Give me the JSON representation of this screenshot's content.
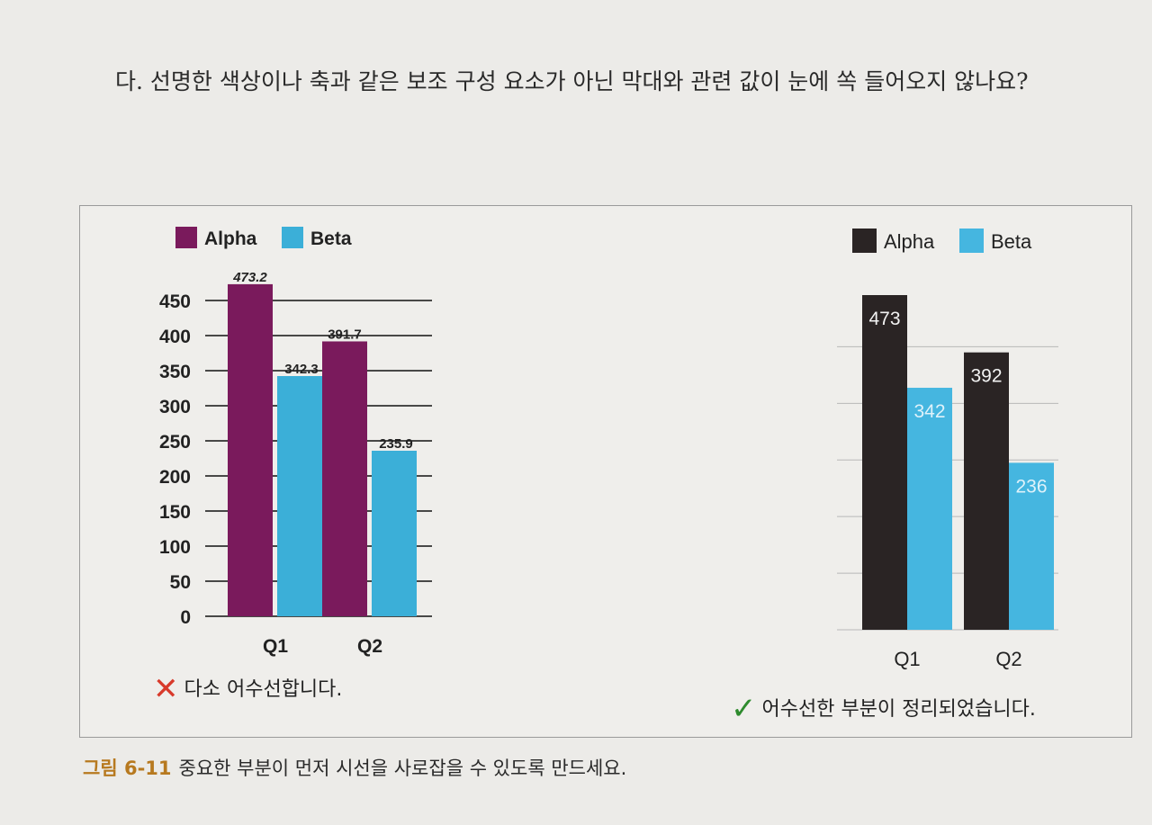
{
  "intro_text": "다. 선명한 색상이나 축과 같은 보조 구성 요소가 아닌 막대와 관련 값이 눈에 쏙 들어오지 않나요?",
  "bad_label": "다소 어수선합니다.",
  "good_label": "어수선한 부분이 정리되었습니다.",
  "caption": {
    "number": "그림 6-11",
    "text": "중요한 부분이 먼저 시선을 사로잡을 수 있도록 만드세요."
  },
  "colors": {
    "alpha_bad": "#7a1a5c",
    "beta_bad": "#3bafd8",
    "alpha_good": "#2a2424",
    "beta_good": "#45b6e0",
    "bad_mark": "#d83a2b",
    "good_mark": "#2e8b2e"
  },
  "chart_data": [
    {
      "type": "bar",
      "categories": [
        "Q1",
        "Q2"
      ],
      "series": [
        {
          "name": "Alpha",
          "values": [
            473.2,
            391.7
          ],
          "labels": [
            "473.2",
            "391.7"
          ]
        },
        {
          "name": "Beta",
          "values": [
            342.3,
            235.9
          ],
          "labels": [
            "342.3",
            "235.9"
          ]
        }
      ],
      "yticks": [
        "0",
        "50",
        "100",
        "150",
        "200",
        "250",
        "300",
        "350",
        "400",
        "450"
      ],
      "ylim": [
        0,
        450
      ],
      "grid": true,
      "legend": "top-left"
    },
    {
      "type": "bar",
      "categories": [
        "Q1",
        "Q2"
      ],
      "series": [
        {
          "name": "Alpha",
          "values": [
            473,
            392
          ],
          "labels": [
            "473",
            "392"
          ]
        },
        {
          "name": "Beta",
          "values": [
            342,
            236
          ],
          "labels": [
            "342",
            "236"
          ]
        }
      ],
      "ylim": [
        0,
        473
      ],
      "grid": true,
      "legend": "top-left"
    }
  ]
}
